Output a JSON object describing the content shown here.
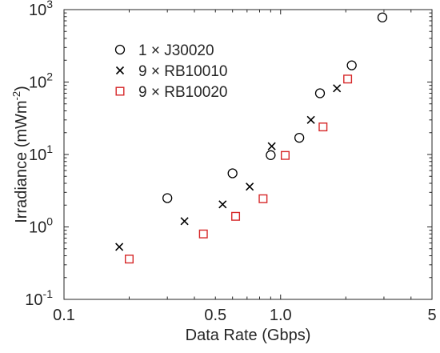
{
  "chart_data": {
    "type": "scatter",
    "title": "",
    "xlabel": "Data Rate (Gbps)",
    "ylabel": "Irradiance (mWm",
    "ylabel_sup": "-2",
    "ylabel_close": ")",
    "xscale": "log",
    "yscale": "log",
    "xlim": [
      0.1,
      5
    ],
    "ylim": [
      0.1,
      1000
    ],
    "grid": false,
    "legend_position": "top-left",
    "x_ticks": [
      {
        "value": 0.1,
        "label": "0.1"
      },
      {
        "value": 0.5,
        "label": "0.5"
      },
      {
        "value": 1,
        "label": "1.0"
      },
      {
        "value": 5,
        "label": "5"
      }
    ],
    "y_ticks": [
      {
        "value": 0.1,
        "base": "10",
        "exp": "-1"
      },
      {
        "value": 1,
        "base": "10",
        "exp": "0"
      },
      {
        "value": 10,
        "base": "10",
        "exp": "1"
      },
      {
        "value": 100,
        "base": "10",
        "exp": "2"
      },
      {
        "value": 1000,
        "base": "10",
        "exp": "3"
      }
    ],
    "series": [
      {
        "name": "1 × J30020",
        "marker": "circle",
        "color": "#000000",
        "x": [
          0.3,
          0.6,
          0.9,
          1.22,
          1.52,
          2.13,
          2.95
        ],
        "y": [
          2.5,
          5.5,
          9.8,
          17,
          70,
          170,
          780
        ]
      },
      {
        "name": "9 × RB10010",
        "marker": "x",
        "color": "#000000",
        "x": [
          0.18,
          0.36,
          0.54,
          0.72,
          0.91,
          1.38,
          1.82
        ],
        "y": [
          0.53,
          1.2,
          2.05,
          3.6,
          13,
          30,
          82
        ]
      },
      {
        "name": "9 × RB10020",
        "marker": "square",
        "color": "#d62728",
        "x": [
          0.2,
          0.44,
          0.62,
          0.83,
          1.05,
          1.57,
          2.04
        ],
        "y": [
          0.36,
          0.8,
          1.4,
          2.45,
          9.7,
          24,
          110
        ]
      }
    ]
  }
}
